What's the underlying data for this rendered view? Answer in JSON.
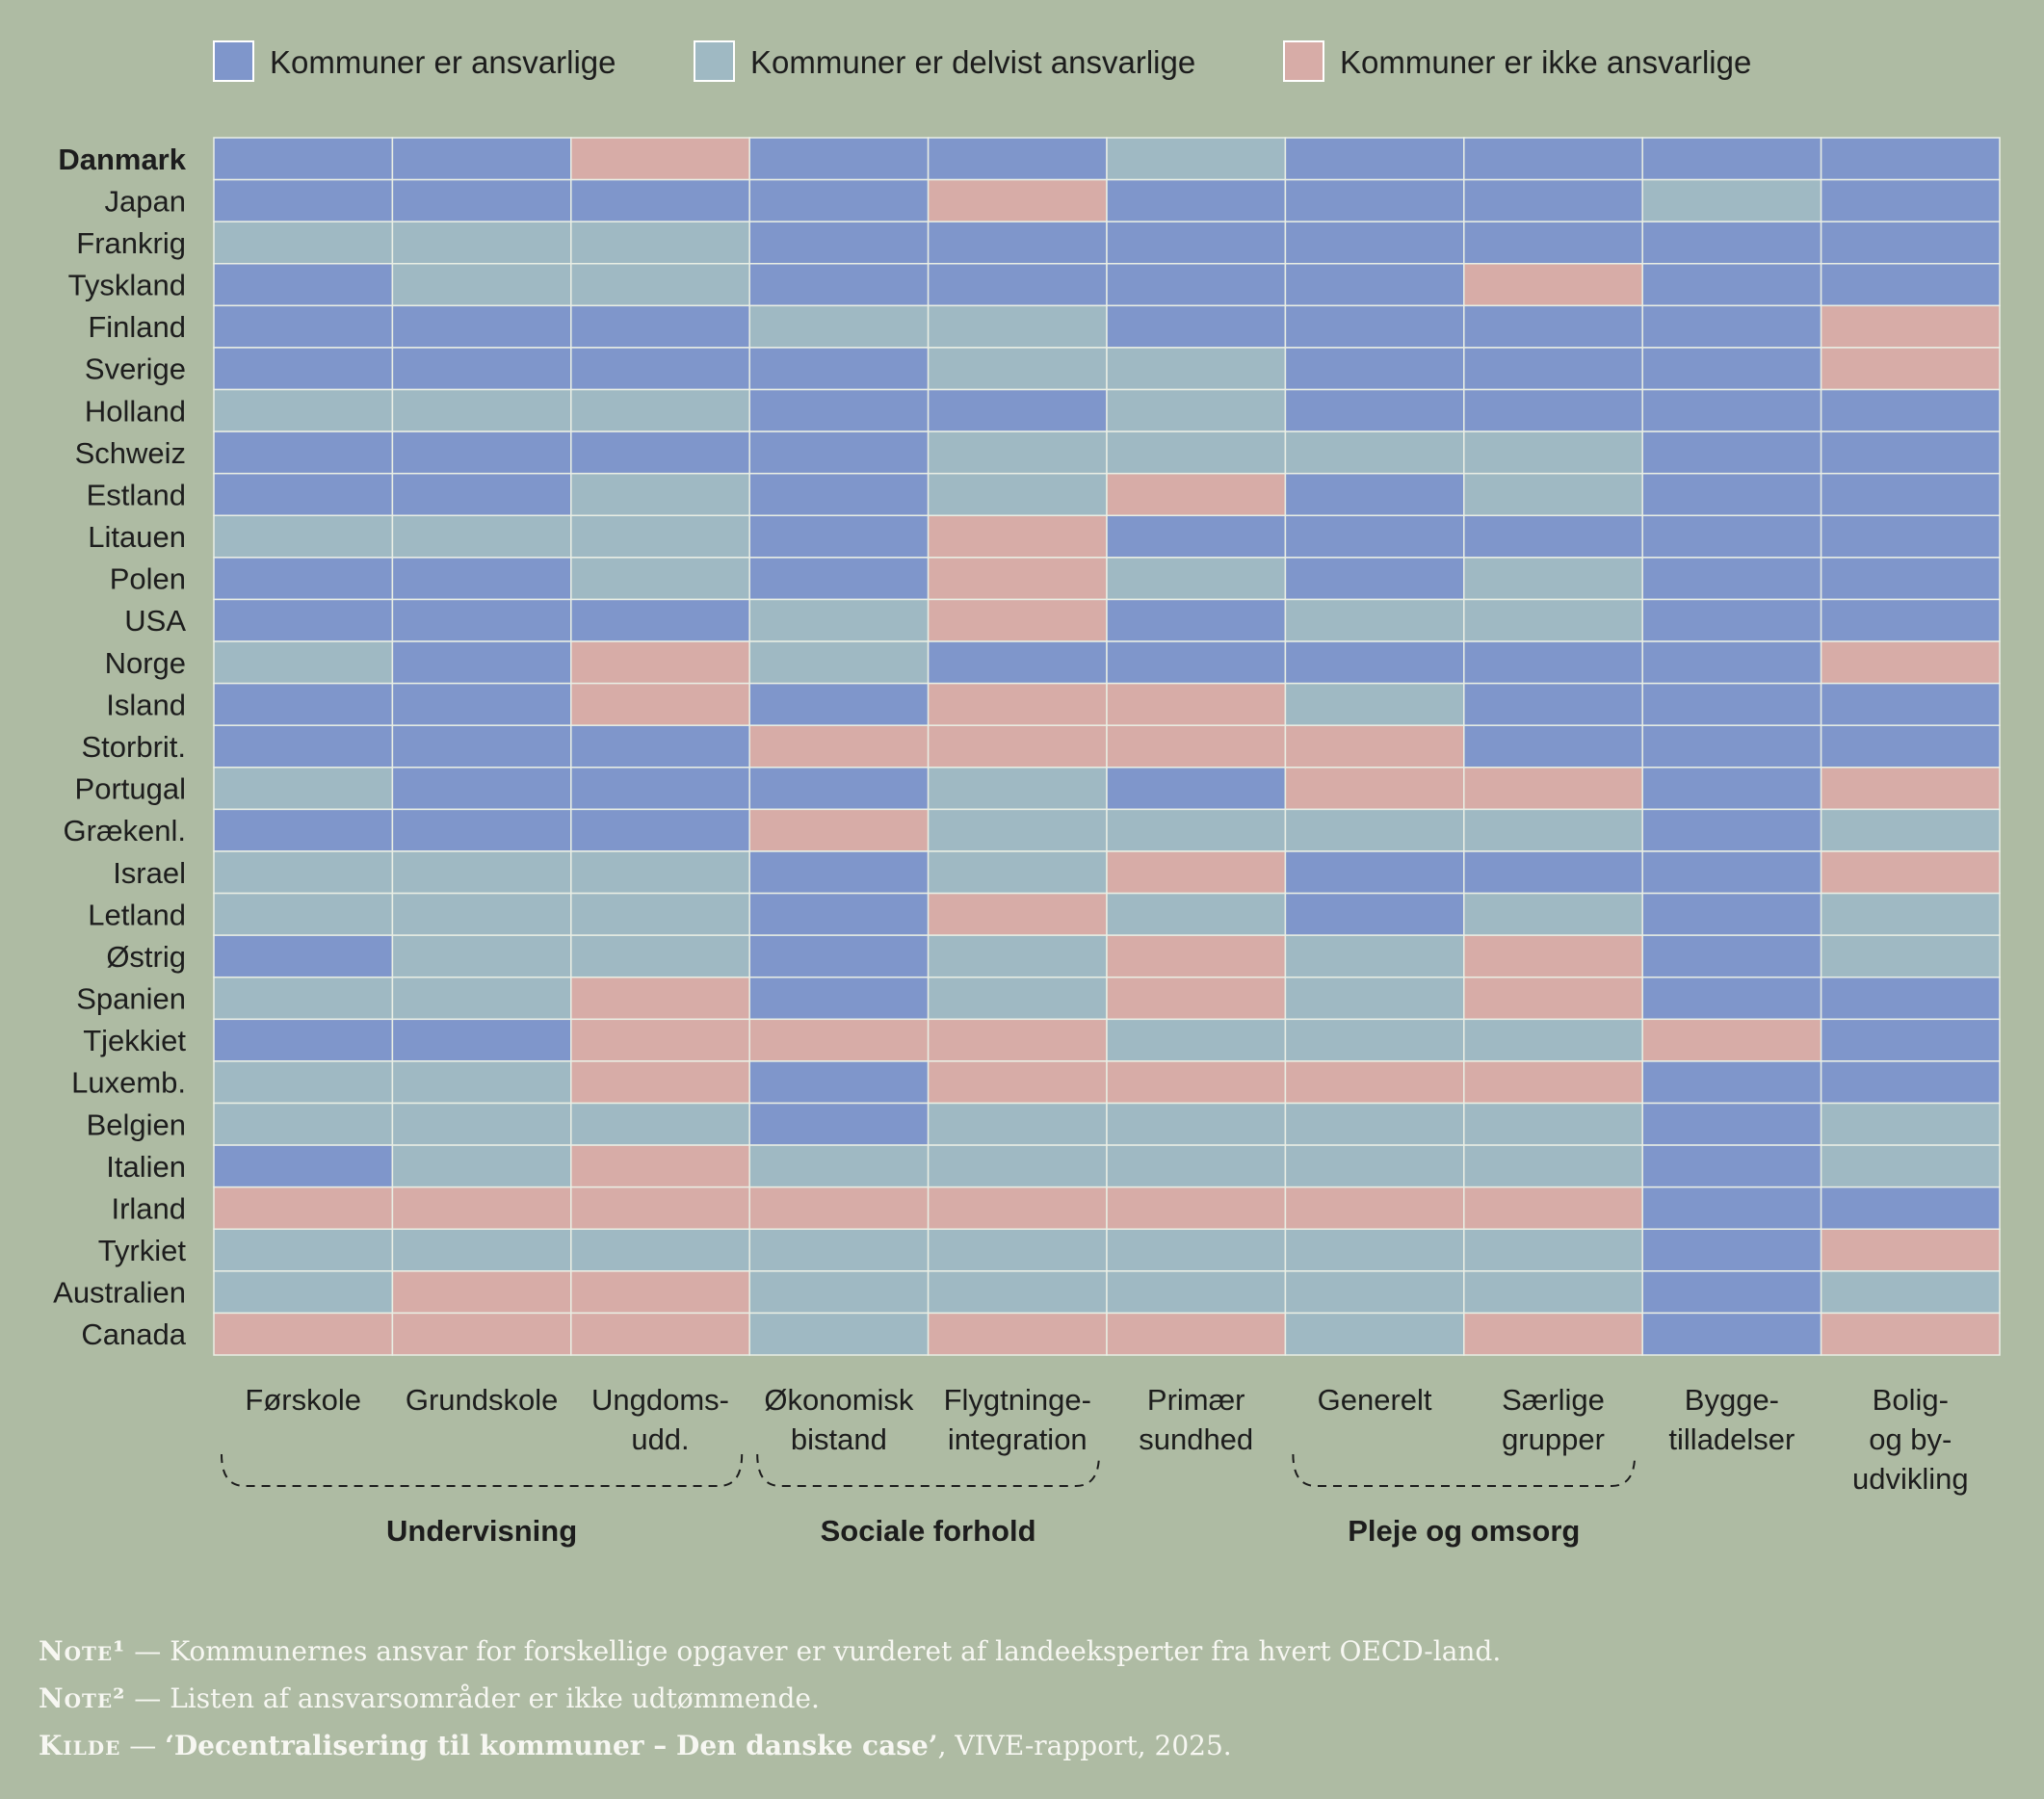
{
  "colors": {
    "background": "#aebba3",
    "ansvarlige": "#7f96cb",
    "delvist": "#9fb9c3",
    "ikke": "#d7aca7"
  },
  "chart_data": {
    "type": "heatmap",
    "legend": [
      {
        "key": "A",
        "label": "Kommuner er ansvarlige",
        "color": "#7f96cb"
      },
      {
        "key": "D",
        "label": "Kommuner er delvist ansvarlige",
        "color": "#9fb9c3"
      },
      {
        "key": "I",
        "label": "Kommuner er ikke ansvarlige",
        "color": "#d7aca7"
      }
    ],
    "columns": [
      [
        "Førskole"
      ],
      [
        "Grundskole"
      ],
      [
        "Ungdoms-",
        "udd."
      ],
      [
        "Økonomisk",
        "bistand"
      ],
      [
        "Flygtninge-",
        "integration"
      ],
      [
        "Primær",
        "sundhed"
      ],
      [
        "Generelt"
      ],
      [
        "Særlige",
        "grupper"
      ],
      [
        "Bygge-",
        "tilladelser"
      ],
      [
        "Bolig-",
        "og by-",
        "udvikling"
      ]
    ],
    "groups": [
      {
        "label": "Undervisning",
        "from": 0,
        "to": 2
      },
      {
        "label": "Sociale forhold",
        "from": 3,
        "to": 4
      },
      {
        "label": "Pleje og omsorg",
        "from": 6,
        "to": 7
      }
    ],
    "rows": [
      {
        "label": "Danmark",
        "bold": true,
        "values": [
          "A",
          "A",
          "I",
          "A",
          "A",
          "D",
          "A",
          "A",
          "A",
          "A"
        ]
      },
      {
        "label": "Japan",
        "values": [
          "A",
          "A",
          "A",
          "A",
          "I",
          "A",
          "A",
          "A",
          "D",
          "A"
        ]
      },
      {
        "label": "Frankrig",
        "values": [
          "D",
          "D",
          "D",
          "A",
          "A",
          "A",
          "A",
          "A",
          "A",
          "A"
        ]
      },
      {
        "label": "Tyskland",
        "values": [
          "A",
          "D",
          "D",
          "A",
          "A",
          "A",
          "A",
          "I",
          "A",
          "A"
        ]
      },
      {
        "label": "Finland",
        "values": [
          "A",
          "A",
          "A",
          "D",
          "D",
          "A",
          "A",
          "A",
          "A",
          "I"
        ]
      },
      {
        "label": "Sverige",
        "values": [
          "A",
          "A",
          "A",
          "A",
          "D",
          "D",
          "A",
          "A",
          "A",
          "I"
        ]
      },
      {
        "label": "Holland",
        "values": [
          "D",
          "D",
          "D",
          "A",
          "A",
          "D",
          "A",
          "A",
          "A",
          "A"
        ]
      },
      {
        "label": "Schweiz",
        "values": [
          "A",
          "A",
          "A",
          "A",
          "D",
          "D",
          "D",
          "D",
          "A",
          "A"
        ]
      },
      {
        "label": "Estland",
        "values": [
          "A",
          "A",
          "D",
          "A",
          "D",
          "I",
          "A",
          "D",
          "A",
          "A"
        ]
      },
      {
        "label": "Litauen",
        "values": [
          "D",
          "D",
          "D",
          "A",
          "I",
          "A",
          "A",
          "A",
          "A",
          "A"
        ]
      },
      {
        "label": "Polen",
        "values": [
          "A",
          "A",
          "D",
          "A",
          "I",
          "D",
          "A",
          "D",
          "A",
          "A"
        ]
      },
      {
        "label": "USA",
        "values": [
          "A",
          "A",
          "A",
          "D",
          "I",
          "A",
          "D",
          "D",
          "A",
          "A"
        ]
      },
      {
        "label": "Norge",
        "values": [
          "D",
          "A",
          "I",
          "D",
          "A",
          "A",
          "A",
          "A",
          "A",
          "I"
        ]
      },
      {
        "label": "Island",
        "values": [
          "A",
          "A",
          "I",
          "A",
          "I",
          "I",
          "D",
          "A",
          "A",
          "A"
        ]
      },
      {
        "label": "Storbrit.",
        "values": [
          "A",
          "A",
          "A",
          "I",
          "I",
          "I",
          "I",
          "A",
          "A",
          "A"
        ]
      },
      {
        "label": "Portugal",
        "values": [
          "D",
          "A",
          "A",
          "A",
          "D",
          "A",
          "I",
          "I",
          "A",
          "I"
        ]
      },
      {
        "label": "Grækenl.",
        "values": [
          "A",
          "A",
          "A",
          "I",
          "D",
          "D",
          "D",
          "D",
          "A",
          "D"
        ]
      },
      {
        "label": "Israel",
        "values": [
          "D",
          "D",
          "D",
          "A",
          "D",
          "I",
          "A",
          "A",
          "A",
          "I"
        ]
      },
      {
        "label": "Letland",
        "values": [
          "D",
          "D",
          "D",
          "A",
          "I",
          "D",
          "A",
          "D",
          "A",
          "D"
        ]
      },
      {
        "label": "Østrig",
        "values": [
          "A",
          "D",
          "D",
          "A",
          "D",
          "I",
          "D",
          "I",
          "A",
          "D"
        ]
      },
      {
        "label": "Spanien",
        "values": [
          "D",
          "D",
          "I",
          "A",
          "D",
          "I",
          "D",
          "I",
          "A",
          "A"
        ]
      },
      {
        "label": "Tjekkiet",
        "values": [
          "A",
          "A",
          "I",
          "I",
          "I",
          "D",
          "D",
          "D",
          "I",
          "A"
        ]
      },
      {
        "label": "Luxemb.",
        "values": [
          "D",
          "D",
          "I",
          "A",
          "I",
          "I",
          "I",
          "I",
          "A",
          "A"
        ]
      },
      {
        "label": "Belgien",
        "values": [
          "D",
          "D",
          "D",
          "A",
          "D",
          "D",
          "D",
          "D",
          "A",
          "D"
        ]
      },
      {
        "label": "Italien",
        "values": [
          "A",
          "D",
          "I",
          "D",
          "D",
          "D",
          "D",
          "D",
          "A",
          "D"
        ]
      },
      {
        "label": "Irland",
        "values": [
          "I",
          "I",
          "I",
          "I",
          "I",
          "I",
          "I",
          "I",
          "A",
          "A"
        ]
      },
      {
        "label": "Tyrkiet",
        "values": [
          "D",
          "D",
          "D",
          "D",
          "D",
          "D",
          "D",
          "D",
          "A",
          "I"
        ]
      },
      {
        "label": "Australien",
        "values": [
          "D",
          "I",
          "I",
          "D",
          "D",
          "D",
          "D",
          "D",
          "A",
          "D"
        ]
      },
      {
        "label": "Canada",
        "values": [
          "I",
          "I",
          "I",
          "D",
          "I",
          "I",
          "D",
          "I",
          "A",
          "I"
        ]
      }
    ]
  },
  "notes": {
    "note1_tag": "Note¹",
    "note1_text": " — Kommunernes ansvar for forskellige opgaver er vurderet af landeeksperter fra hvert OECD-land.",
    "note2_tag": "Note²",
    "note2_text": " — Listen af ansvarsområder er ikke udtømmende.",
    "source_tag": "Kilde",
    "source_title": "‘Decentralisering til kommuner – Den danske case’",
    "source_rest": ", VIVE-rapport, 2025."
  }
}
